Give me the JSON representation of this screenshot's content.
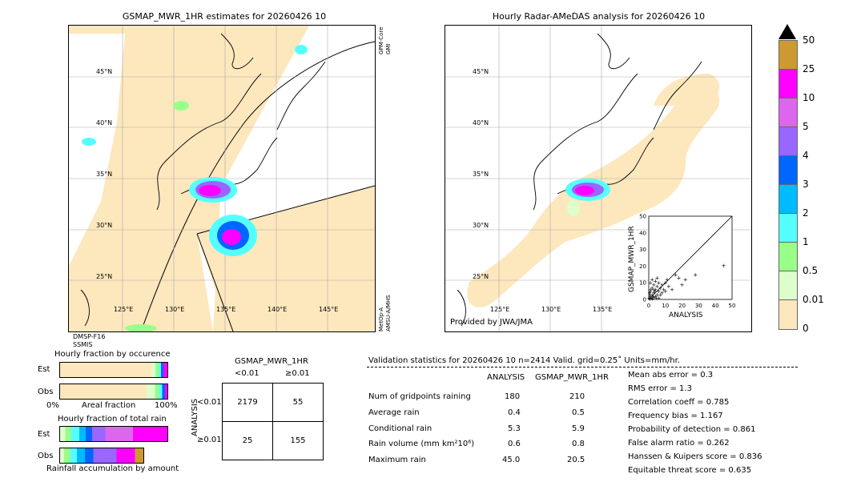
{
  "left_panel": {
    "title": "GSMAP_MWR_1HR estimates for 20260426 10",
    "right_side_labels": [
      "GPM-Core",
      "GMI",
      "MetOp-A",
      "AMSU-A/MHS"
    ],
    "bottom_labels": [
      "DMSP-F16",
      "SSMIS"
    ],
    "lat_labels": [
      "45°N",
      "40°N",
      "35°N",
      "30°N",
      "25°N"
    ],
    "lon_labels": [
      "125°E",
      "130°E",
      "135°E",
      "140°E",
      "145°E"
    ]
  },
  "right_panel": {
    "title": "Hourly Radar-AMeDAS analysis for 20260426 10",
    "credit": "Provided by JWA/JMA",
    "lat_labels": [
      "45°N",
      "40°N",
      "35°N",
      "30°N",
      "25°N"
    ],
    "lon_labels": [
      "125°E",
      "130°E",
      "135°E"
    ]
  },
  "scatter_inset": {
    "ylabel": "GSMAP_MWR_1HR",
    "xlabel": "ANALYSIS",
    "ticks": [
      "0",
      "10",
      "20",
      "30",
      "40",
      "50"
    ]
  },
  "colorbar": {
    "labels": [
      "50",
      "25",
      "10",
      "5",
      "4",
      "3",
      "2",
      "1",
      "0.5",
      "0.01",
      "0"
    ],
    "colors": [
      "#cc9933",
      "#ff00ff",
      "#dd66ee",
      "#9966ff",
      "#0066ff",
      "#00bbff",
      "#55ffff",
      "#99ff88",
      "#ddffcc",
      "#fde7bd"
    ]
  },
  "fraction_occurrence": {
    "title": "Hourly fraction by occurence",
    "row_labels": [
      "Est",
      "Obs"
    ],
    "axis_left": "0%",
    "axis_mid": "Areal fraction",
    "axis_right": "100%"
  },
  "fraction_total": {
    "title": "Hourly fraction of total rain",
    "row_labels": [
      "Est",
      "Obs"
    ],
    "footer": "Rainfall accumulation by amount"
  },
  "contingency": {
    "title": "GSMAP_MWR_1HR",
    "col_labels": [
      "<0.01",
      "≥0.01"
    ],
    "side_label": "ANALYSIS",
    "row_labels": [
      "<0.01",
      "≥0.01"
    ],
    "cells": [
      [
        "2179",
        "55"
      ],
      [
        "25",
        "155"
      ]
    ]
  },
  "validation": {
    "header": "Validation statistics for 20260426 10  n=2414 Valid. grid=0.25˚ Units=mm/hr.",
    "col_headers": [
      "ANALYSIS",
      "GSMAP_MWR_1HR"
    ],
    "rows": [
      {
        "label": "Num of gridpoints raining",
        "analysis": "180",
        "gsmap": "210"
      },
      {
        "label": "Average rain",
        "analysis": "0.4",
        "gsmap": "0.5"
      },
      {
        "label": "Conditional rain",
        "analysis": "5.3",
        "gsmap": "5.9"
      },
      {
        "label": "Rain volume (mm km²10⁶)",
        "analysis": "0.6",
        "gsmap": "0.8"
      },
      {
        "label": "Maximum rain",
        "analysis": "45.0",
        "gsmap": "20.5"
      }
    ],
    "scores": [
      "Mean abs error =    0.3",
      "RMS error =    1.3",
      "Correlation coeff =  0.785",
      "Frequency bias =  1.167",
      "Probability of detection =  0.861",
      "False alarm ratio =  0.262",
      "Hanssen & Kuipers score =  0.836",
      "Equitable threat score =  0.635"
    ]
  },
  "chart_data": {
    "type": "scatter",
    "xlabel": "ANALYSIS",
    "ylabel": "GSMAP_MWR_1HR",
    "xlim": [
      0,
      50
    ],
    "ylim": [
      0,
      50
    ],
    "points": [
      [
        0.5,
        0.3
      ],
      [
        1,
        2
      ],
      [
        1.5,
        1
      ],
      [
        2,
        3
      ],
      [
        2,
        0.5
      ],
      [
        3,
        4
      ],
      [
        3,
        1.5
      ],
      [
        4,
        2
      ],
      [
        4,
        6
      ],
      [
        5,
        3
      ],
      [
        5,
        8
      ],
      [
        6,
        5
      ],
      [
        6,
        1
      ],
      [
        7,
        7
      ],
      [
        7,
        3
      ],
      [
        8,
        4
      ],
      [
        8,
        9
      ],
      [
        9,
        6
      ],
      [
        10,
        10
      ],
      [
        10,
        5
      ],
      [
        11,
        12
      ],
      [
        12,
        8
      ],
      [
        14,
        6
      ],
      [
        16,
        15
      ],
      [
        18,
        13
      ],
      [
        20,
        9
      ],
      [
        22,
        12
      ],
      [
        28,
        15
      ],
      [
        45,
        20.5
      ],
      [
        1,
        5
      ],
      [
        2,
        7
      ],
      [
        3,
        9
      ],
      [
        0.5,
        4
      ],
      [
        1,
        10
      ],
      [
        2,
        12
      ],
      [
        3,
        6
      ],
      [
        4,
        11
      ],
      [
        5,
        13
      ],
      [
        6,
        10
      ],
      [
        0.3,
        1
      ],
      [
        0.8,
        3
      ],
      [
        1.2,
        6
      ],
      [
        2.5,
        2
      ],
      [
        3.5,
        5
      ],
      [
        4.5,
        1
      ]
    ]
  }
}
